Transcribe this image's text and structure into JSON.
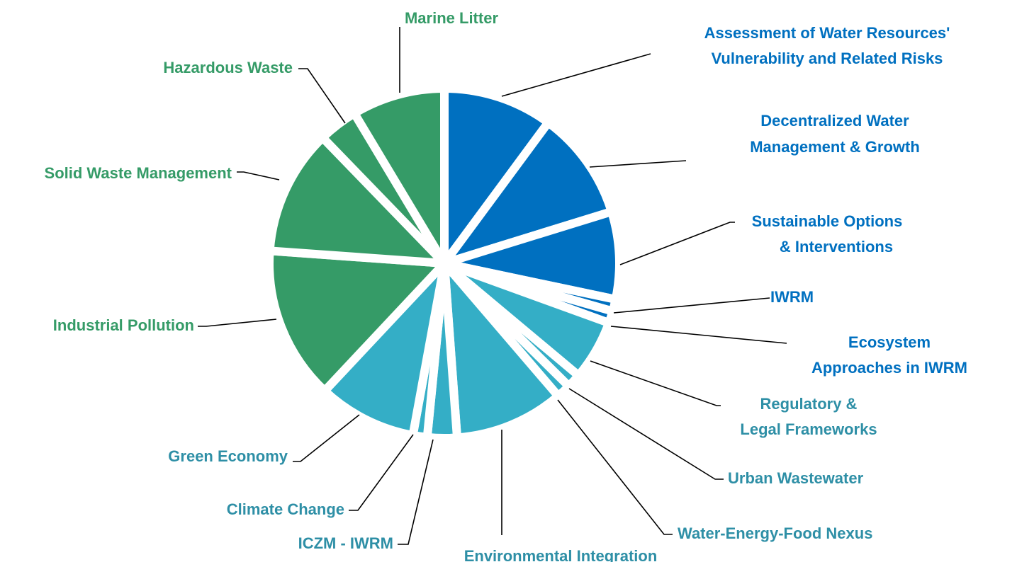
{
  "chart_data": {
    "type": "pie",
    "title": "",
    "colors": {
      "water": "#0070C0",
      "integration": "#34AEC6",
      "pollution": "#359B67",
      "label_water": "#0070C0",
      "label_integration": "#2E8FA6",
      "label_pollution": "#359B67"
    },
    "series": [
      {
        "values": [
          10,
          10,
          8,
          1.1,
          1.1,
          5.5,
          1.3,
          1.3,
          10,
          2.7,
          1.3,
          9,
          14,
          11.5,
          3.6,
          8.5
        ],
        "labels": [
          "Assessment of Water Resources' Vulnerability and Related Risks",
          "Decentralized Water Management & Growth",
          "Sustainable Options & Interventions",
          "IWRM",
          "Ecosystem Approaches in IWRM",
          "Regulatory & Legal Frameworks",
          "Urban Wastewater",
          "Water-Energy-Food Nexus",
          "Environmental Integration",
          "ICZM - IWRM",
          "Climate Change",
          "Green Economy",
          "Industrial Pollution",
          "Solid Waste Management",
          "Hazardous Waste",
          "Marine Litter"
        ],
        "groups": [
          "water",
          "water",
          "water",
          "water",
          "water",
          "integration",
          "integration",
          "integration",
          "integration",
          "integration",
          "integration",
          "integration",
          "pollution",
          "pollution",
          "pollution",
          "pollution"
        ]
      }
    ],
    "legend": "none"
  }
}
